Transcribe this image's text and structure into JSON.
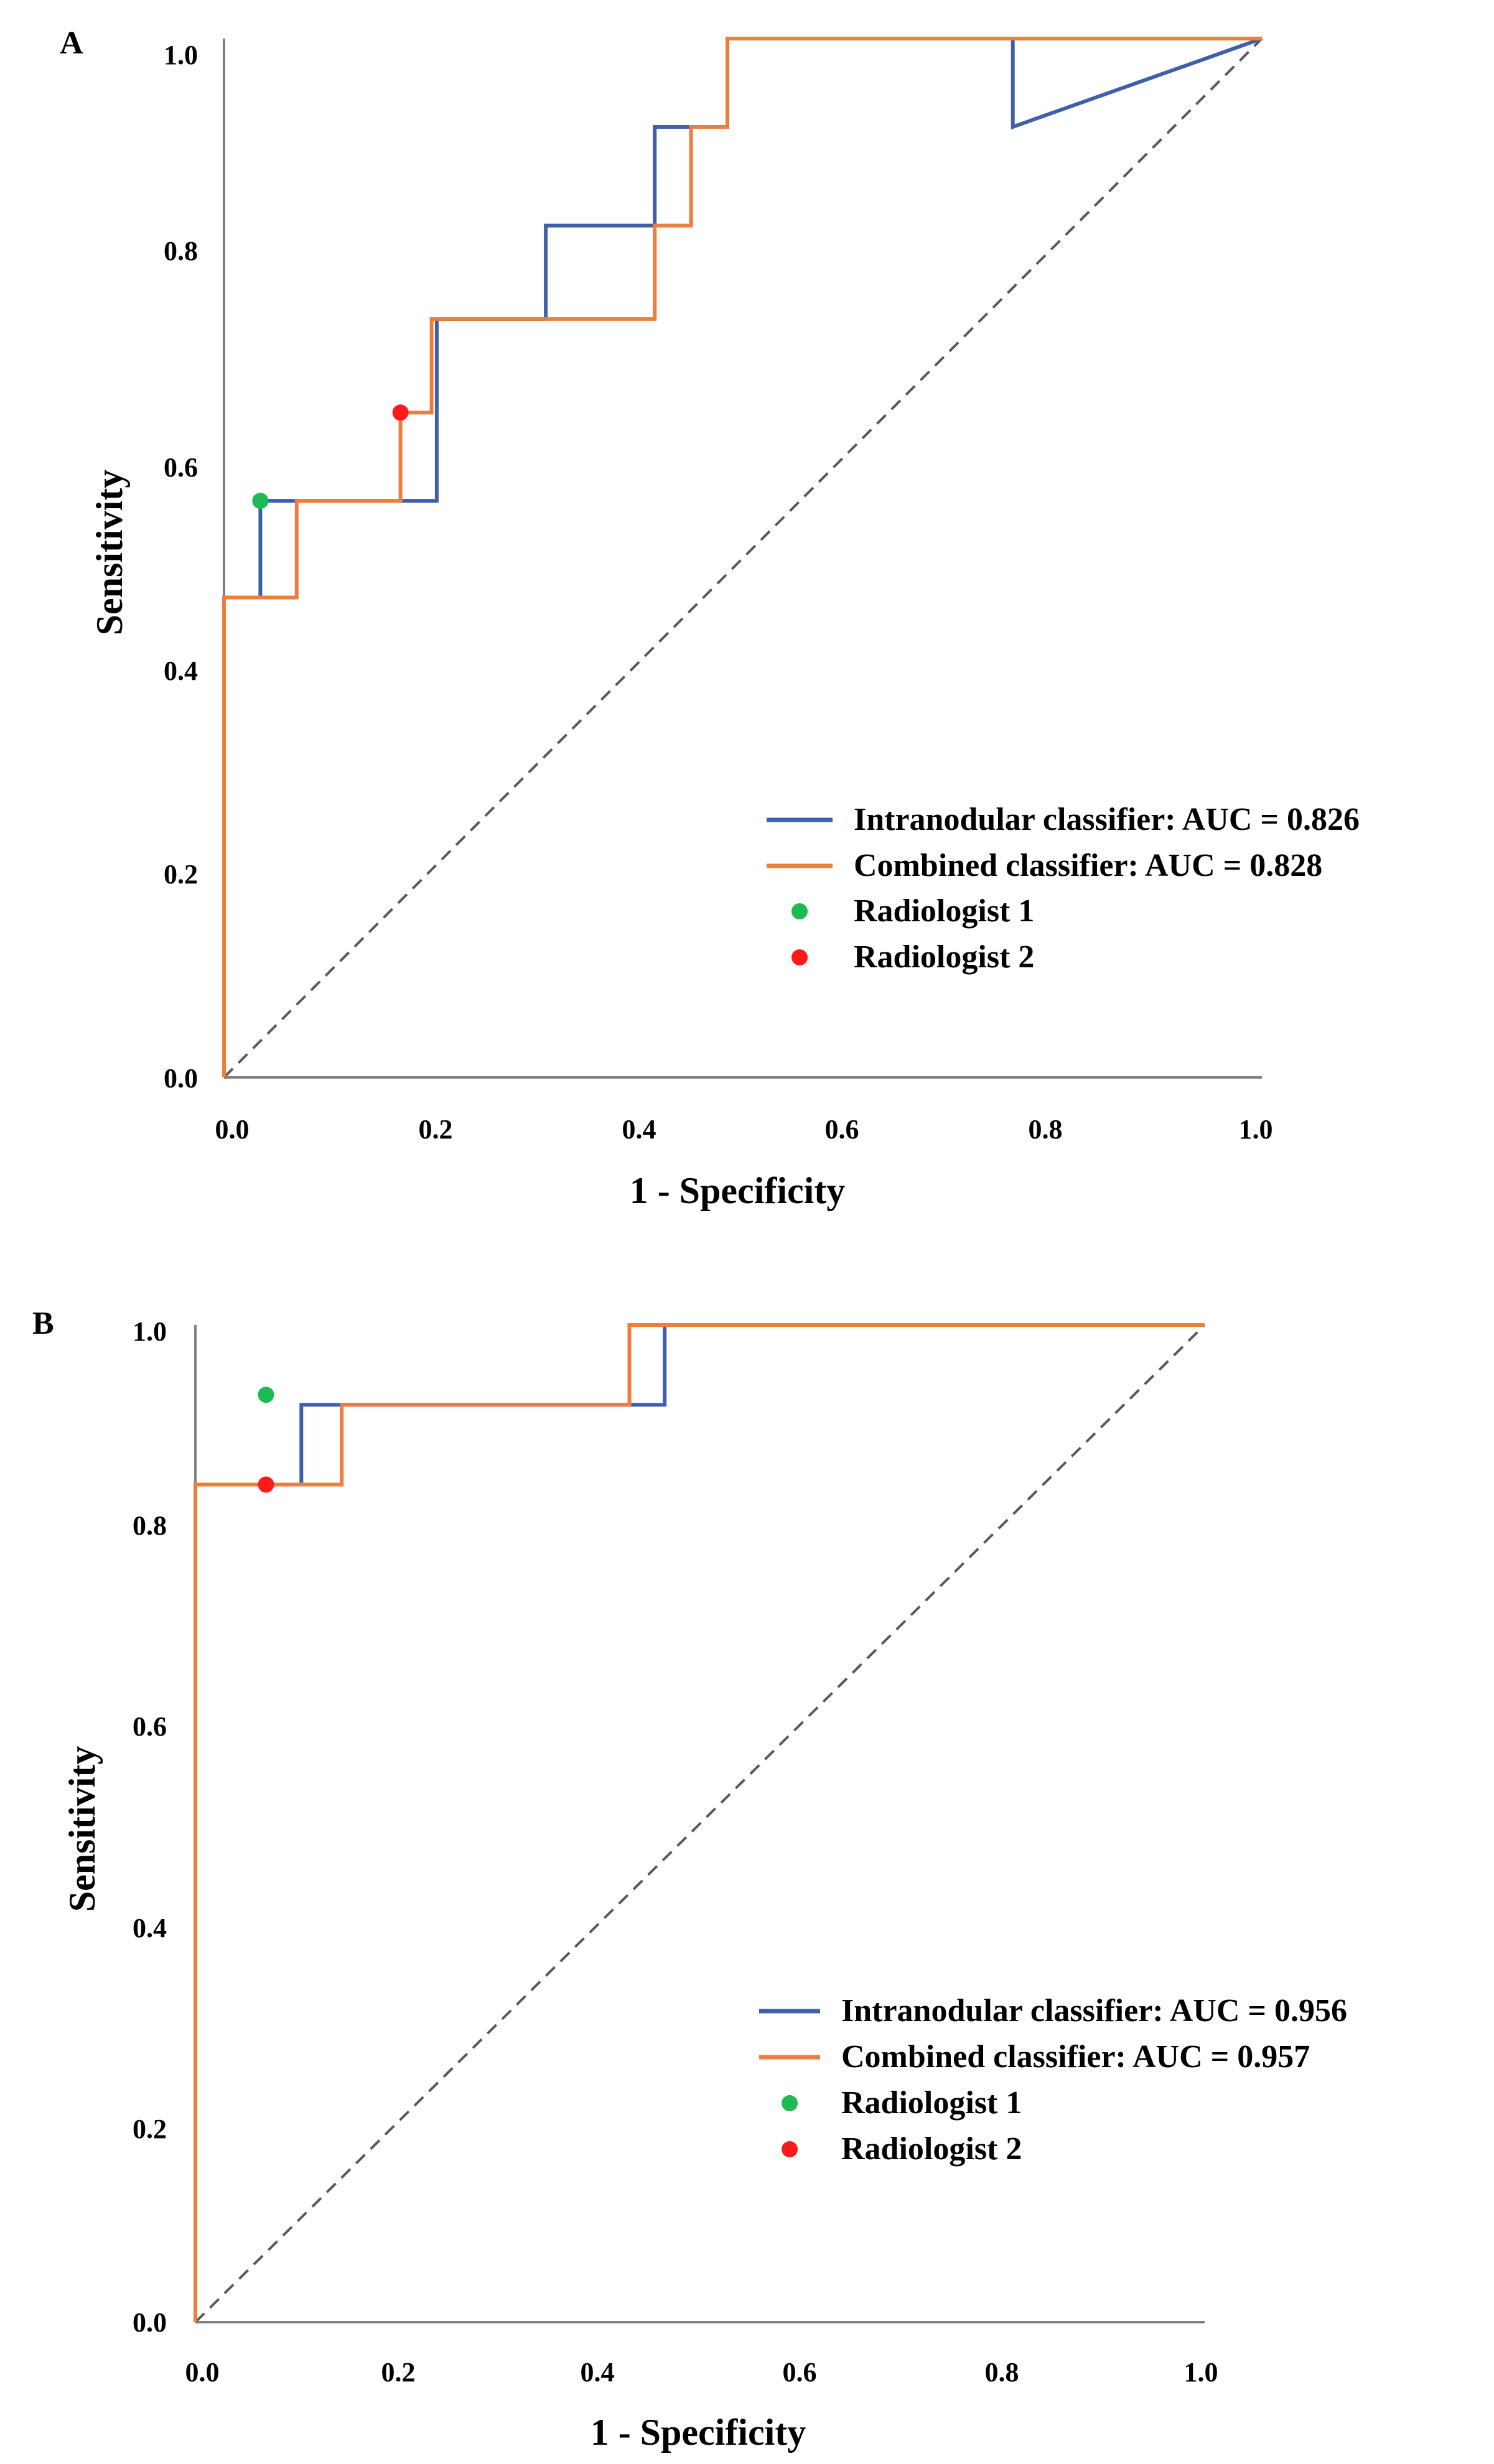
{
  "chart_data": [
    {
      "type": "line",
      "panel_label": "A",
      "xlabel": "1 - Specificity",
      "ylabel": "Sensitivity",
      "xlim": [
        0,
        1
      ],
      "ylim": [
        0,
        1
      ],
      "xticks": [
        "0.0",
        "0.2",
        "0.4",
        "0.6",
        "0.8",
        "1.0"
      ],
      "yticks": [
        "0.0",
        "0.2",
        "0.4",
        "0.6",
        "0.8",
        "1.0"
      ],
      "grid": false,
      "legend": "bottom-right",
      "reference_line": "diagonal-dashed",
      "series": [
        {
          "name": "Intranodular classifier: AUC = 0.826",
          "color": "#3f5fa8",
          "x": [
            0,
            0,
            0.035,
            0.035,
            0.205,
            0.205,
            0.31,
            0.31,
            0.415,
            0.415,
            0.485,
            0.485,
            0.76,
            0.76,
            1.0
          ],
          "y": [
            0,
            0.462,
            0.462,
            0.555,
            0.555,
            0.73,
            0.73,
            0.82,
            0.82,
            0.915,
            0.915,
            1.0,
            1.0,
            0.915,
            1.0
          ]
        },
        {
          "name": "Combined classifier: AUC = 0.828",
          "color": "#ef7d3c",
          "x": [
            0,
            0,
            0.07,
            0.07,
            0.17,
            0.17,
            0.2,
            0.2,
            0.415,
            0.415,
            0.45,
            0.45,
            0.485,
            0.485,
            1.0
          ],
          "y": [
            0,
            0.462,
            0.462,
            0.555,
            0.555,
            0.64,
            0.64,
            0.73,
            0.73,
            0.82,
            0.82,
            0.915,
            0.915,
            1.0,
            1.0
          ]
        }
      ],
      "points": [
        {
          "name": "Radiologist 1",
          "color": "#1db954",
          "x": 0.035,
          "y": 0.555
        },
        {
          "name": "Radiologist 2",
          "color": "#ff1a1a",
          "x": 0.17,
          "y": 0.64
        }
      ]
    },
    {
      "type": "line",
      "panel_label": "B",
      "xlabel": "1 - Specificity",
      "ylabel": "Sensitivity",
      "xlim": [
        0,
        1
      ],
      "ylim": [
        0,
        1
      ],
      "xticks": [
        "0.0",
        "0.2",
        "0.4",
        "0.6",
        "0.8",
        "1.0"
      ],
      "yticks": [
        "0.0",
        "0.2",
        "0.4",
        "0.6",
        "0.8",
        "1.0"
      ],
      "grid": false,
      "legend": "bottom-right",
      "reference_line": "diagonal-dashed",
      "series": [
        {
          "name": "Intranodular classifier: AUC = 0.956",
          "color": "#3f5fa8",
          "x": [
            0,
            0,
            0.105,
            0.105,
            0.465,
            0.465,
            1.0
          ],
          "y": [
            0,
            0.84,
            0.84,
            0.92,
            0.92,
            1.0,
            1.0
          ]
        },
        {
          "name": "Combined classifier: AUC = 0.957",
          "color": "#ef7d3c",
          "x": [
            0,
            0,
            0.145,
            0.145,
            0.43,
            0.43,
            1.0
          ],
          "y": [
            0,
            0.84,
            0.84,
            0.92,
            0.92,
            1.0,
            1.0
          ]
        }
      ],
      "points": [
        {
          "name": "Radiologist 1",
          "color": "#1db954",
          "x": 0.07,
          "y": 0.93
        },
        {
          "name": "Radiologist 2",
          "color": "#ff1a1a",
          "x": 0.07,
          "y": 0.84
        }
      ]
    }
  ]
}
